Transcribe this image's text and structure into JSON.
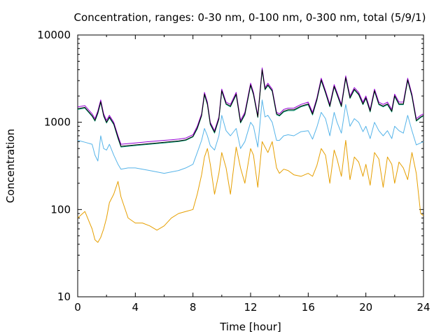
{
  "chart_data": {
    "type": "line",
    "title": "Concentration, ranges: 0-30 nm, 0-100 nm, 0-300 nm, total (5/9/1)",
    "xlabel": "Time [hour]",
    "ylabel": "Concentration",
    "xlim": [
      0,
      24
    ],
    "ylim": [
      10,
      10000
    ],
    "yscale": "log",
    "grid": false,
    "legend": "none",
    "x_ticks": [
      "0",
      "4",
      "8",
      "12",
      "16",
      "20",
      "24"
    ],
    "y_ticks": [
      "10",
      "100",
      "1000",
      "10000"
    ],
    "x": [
      0,
      0.5,
      1,
      1.2,
      1.4,
      1.6,
      1.8,
      2,
      2.2,
      2.5,
      2.8,
      3,
      3.5,
      4,
      4.5,
      5,
      5.5,
      6,
      6.5,
      7,
      7.5,
      8,
      8.3,
      8.6,
      8.8,
      9,
      9.2,
      9.5,
      9.8,
      10,
      10.3,
      10.6,
      11,
      11.3,
      11.6,
      12,
      12.2,
      12.5,
      12.8,
      13,
      13.2,
      13.5,
      13.8,
      14,
      14.3,
      14.6,
      15,
      15.5,
      16,
      16.3,
      16.6,
      16.9,
      17.2,
      17.5,
      17.8,
      18,
      18.3,
      18.6,
      18.9,
      19.2,
      19.5,
      19.8,
      20,
      20.3,
      20.6,
      20.9,
      21.2,
      21.5,
      21.8,
      22,
      22.3,
      22.6,
      22.9,
      23.2,
      23.5,
      23.8,
      24
    ],
    "series": [
      {
        "color": "#9400d3",
        "values": [
          1500,
          1550,
          1250,
          1100,
          1350,
          1800,
          1250,
          1050,
          1200,
          1000,
          700,
          560,
          570,
          580,
          590,
          600,
          610,
          620,
          630,
          640,
          660,
          720,
          900,
          1250,
          2200,
          1700,
          1000,
          800,
          1150,
          2400,
          1700,
          1600,
          2200,
          1050,
          1300,
          2800,
          2200,
          1200,
          4200,
          2500,
          2800,
          2400,
          1300,
          1250,
          1400,
          1450,
          1450,
          1600,
          1700,
          1300,
          1900,
          3200,
          2300,
          1600,
          2700,
          2200,
          1600,
          3400,
          2000,
          2500,
          2200,
          1700,
          2000,
          1400,
          2400,
          1700,
          1600,
          1700,
          1400,
          2100,
          1700,
          1700,
          3200,
          2100,
          1100,
          1200,
          1250
        ]
      },
      {
        "color": "#000000",
        "values": [
          1430,
          1480,
          1190,
          1050,
          1290,
          1720,
          1190,
          1000,
          1150,
          960,
          670,
          530,
          540,
          550,
          560,
          570,
          580,
          590,
          600,
          610,
          630,
          690,
          860,
          1200,
          2100,
          1620,
          960,
          770,
          1100,
          2300,
          1630,
          1530,
          2100,
          1000,
          1240,
          2680,
          2100,
          1150,
          4000,
          2400,
          2680,
          2300,
          1250,
          1200,
          1340,
          1390,
          1390,
          1530,
          1620,
          1240,
          1820,
          3060,
          2200,
          1530,
          2580,
          2100,
          1530,
          3250,
          1910,
          2390,
          2100,
          1620,
          1910,
          1340,
          2300,
          1620,
          1530,
          1620,
          1340,
          2010,
          1620,
          1620,
          3060,
          2010,
          1050,
          1150,
          1200
        ]
      },
      {
        "color": "#009e73",
        "values": [
          1400,
          1450,
          1170,
          1030,
          1260,
          1690,
          1170,
          980,
          1120,
          940,
          650,
          520,
          530,
          540,
          550,
          560,
          570,
          580,
          590,
          600,
          620,
          680,
          840,
          1180,
          2050,
          1590,
          940,
          750,
          1080,
          2260,
          1600,
          1500,
          2060,
          980,
          1210,
          2630,
          2060,
          1130,
          3920,
          2350,
          2630,
          2260,
          1220,
          1180,
          1310,
          1360,
          1360,
          1500,
          1590,
          1210,
          1780,
          3000,
          2160,
          1500,
          2530,
          2060,
          1500,
          3190,
          1870,
          2340,
          2060,
          1590,
          1870,
          1310,
          2260,
          1590,
          1500,
          1590,
          1310,
          1970,
          1590,
          1590,
          3000,
          1970,
          1030,
          1130,
          1180
        ]
      },
      {
        "color": "#56b4e9",
        "values": [
          620,
          590,
          560,
          420,
          360,
          700,
          500,
          480,
          560,
          420,
          330,
          290,
          300,
          300,
          290,
          280,
          270,
          260,
          270,
          280,
          300,
          330,
          450,
          620,
          850,
          700,
          540,
          480,
          700,
          1200,
          800,
          700,
          850,
          500,
          600,
          1000,
          900,
          520,
          1800,
          1150,
          1200,
          1000,
          620,
          620,
          700,
          720,
          700,
          780,
          800,
          640,
          880,
          1300,
          1100,
          700,
          1300,
          1000,
          750,
          1600,
          900,
          1100,
          1000,
          780,
          900,
          650,
          1000,
          800,
          700,
          800,
          650,
          900,
          800,
          750,
          1200,
          800,
          550,
          580,
          600
        ]
      },
      {
        "color": "#e69f00",
        "values": [
          80,
          95,
          60,
          45,
          42,
          48,
          60,
          80,
          120,
          150,
          210,
          140,
          80,
          70,
          70,
          65,
          58,
          65,
          80,
          90,
          95,
          100,
          150,
          250,
          400,
          500,
          330,
          150,
          260,
          450,
          300,
          150,
          520,
          300,
          200,
          500,
          420,
          180,
          600,
          520,
          450,
          600,
          300,
          260,
          290,
          280,
          250,
          240,
          260,
          240,
          320,
          500,
          420,
          200,
          480,
          380,
          240,
          620,
          220,
          400,
          350,
          240,
          330,
          190,
          450,
          380,
          180,
          400,
          330,
          200,
          350,
          300,
          220,
          450,
          260,
          90,
          85
        ]
      }
    ]
  }
}
